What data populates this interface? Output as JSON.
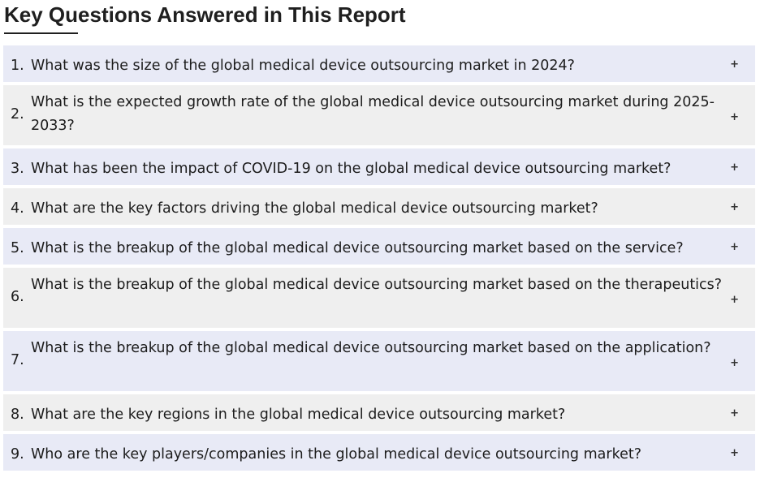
{
  "section": {
    "title": "Key Questions Answered in This Report"
  },
  "expand_icon": "plus-icon",
  "faq": {
    "items": [
      {
        "num": "1.",
        "text": "What was the size of the global medical device outsourcing market in 2024?"
      },
      {
        "num": "2.",
        "text": "What is the expected growth rate of the global medical device outsourcing market during 2025-2033?"
      },
      {
        "num": "3.",
        "text": "What has been the impact of COVID-19 on the global medical device outsourcing market?"
      },
      {
        "num": "4.",
        "text": "What are the key factors driving the global medical device outsourcing market?"
      },
      {
        "num": "5.",
        "text": "What is the breakup of the global medical device outsourcing market based on the service?"
      },
      {
        "num": "6.",
        "text": "What is the breakup of the global medical device outsourcing market based on the therapeutics?"
      },
      {
        "num": "7.",
        "text": "What is the breakup of the global medical device outsourcing market based on the application?"
      },
      {
        "num": "8.",
        "text": "What are the key regions in the global medical device outsourcing market?"
      },
      {
        "num": "9.",
        "text": "Who are the key players/companies in the global medical device outsourcing market?"
      }
    ],
    "toggle_symbol": "+"
  }
}
